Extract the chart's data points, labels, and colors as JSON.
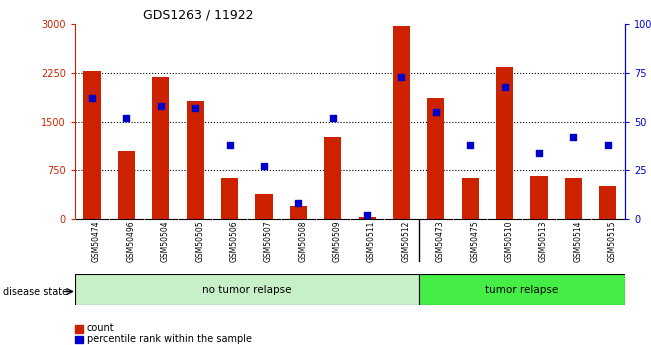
{
  "title": "GDS1263 / 11922",
  "samples": [
    "GSM50474",
    "GSM50496",
    "GSM50504",
    "GSM50505",
    "GSM50506",
    "GSM50507",
    "GSM50508",
    "GSM50509",
    "GSM50511",
    "GSM50512",
    "GSM50473",
    "GSM50475",
    "GSM50510",
    "GSM50513",
    "GSM50514",
    "GSM50515"
  ],
  "counts": [
    2280,
    1050,
    2190,
    1820,
    630,
    390,
    200,
    1270,
    30,
    2970,
    1860,
    630,
    2340,
    660,
    630,
    510
  ],
  "percentiles": [
    62,
    52,
    58,
    57,
    38,
    27,
    8,
    52,
    2,
    73,
    55,
    38,
    68,
    34,
    42,
    38
  ],
  "group_labels": [
    "no tumor relapse",
    "tumor relapse"
  ],
  "group_sizes": [
    10,
    6
  ],
  "bar_color": "#cc2200",
  "dot_color": "#0000cc",
  "ylim_left": [
    0,
    3000
  ],
  "ylim_right": [
    0,
    100
  ],
  "yticks_left": [
    0,
    750,
    1500,
    2250,
    3000
  ],
  "ytick_labels_left": [
    "0",
    "750",
    "1500",
    "2250",
    "3000"
  ],
  "yticks_right": [
    0,
    25,
    50,
    75,
    100
  ],
  "ytick_labels_right": [
    "0",
    "25",
    "50",
    "75",
    "100%"
  ],
  "background_color": "#ffffff",
  "sample_bg": "#cccccc",
  "no_tumor_color": "#c8f0c8",
  "tumor_color": "#44ee44",
  "disease_label": "disease state",
  "legend_count": "count",
  "legend_percentile": "percentile rank within the sample"
}
